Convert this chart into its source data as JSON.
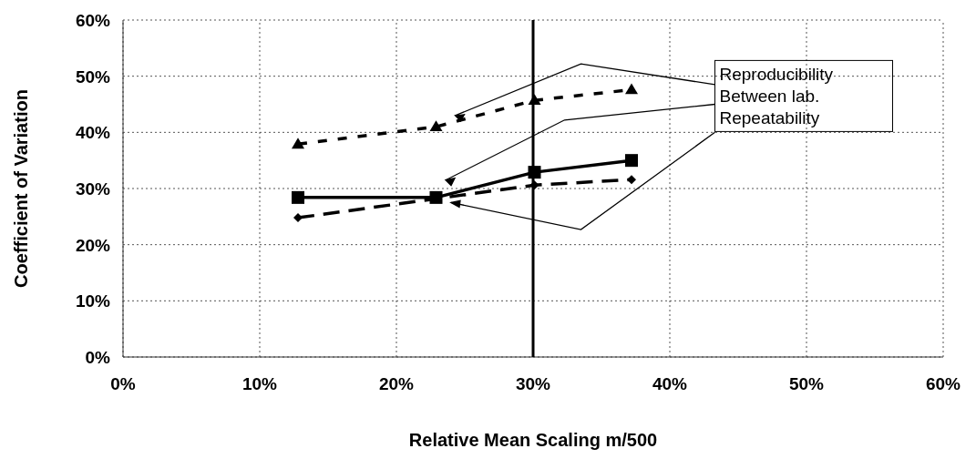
{
  "chart_data": {
    "type": "line",
    "xlabel": "Relative Mean Scaling m/500",
    "ylabel": "Coefficient of Variation",
    "xlim": [
      0,
      60
    ],
    "ylim": [
      0,
      60
    ],
    "xticks": [
      {
        "value": 0,
        "label": "0%"
      },
      {
        "value": 10,
        "label": "10%"
      },
      {
        "value": 20,
        "label": "20%"
      },
      {
        "value": 30,
        "label": "30%"
      },
      {
        "value": 40,
        "label": "40%"
      },
      {
        "value": 50,
        "label": "50%"
      },
      {
        "value": 60,
        "label": "60%"
      }
    ],
    "yticks": [
      {
        "value": 0,
        "label": "0%"
      },
      {
        "value": 10,
        "label": "10%"
      },
      {
        "value": 20,
        "label": "20%"
      },
      {
        "value": 30,
        "label": "30%"
      },
      {
        "value": 40,
        "label": "40%"
      },
      {
        "value": 50,
        "label": "50%"
      },
      {
        "value": 60,
        "label": "60%"
      }
    ],
    "grid": true,
    "legend": "right",
    "x": [
      12.8,
      22.9,
      30.1,
      37.2
    ],
    "series": [
      {
        "name": "Reproducibility",
        "color": "#000000",
        "values": [
          37.9,
          41,
          45.7,
          47.6
        ],
        "marker": "triangle",
        "line_style": "dotted"
      },
      {
        "name": "Between lab.",
        "color": "#000000",
        "values": [
          28.4,
          28.4,
          32.9,
          35
        ],
        "marker": "square",
        "line_style": "solid"
      },
      {
        "name": "Repeatability",
        "color": "#000000",
        "values": [
          24.8,
          null,
          30.6,
          31.6
        ],
        "marker": "diamond",
        "line_style": "dashed"
      }
    ],
    "ref_lines": [
      {
        "axis": "x",
        "value": 30,
        "color": "#000000"
      }
    ]
  }
}
